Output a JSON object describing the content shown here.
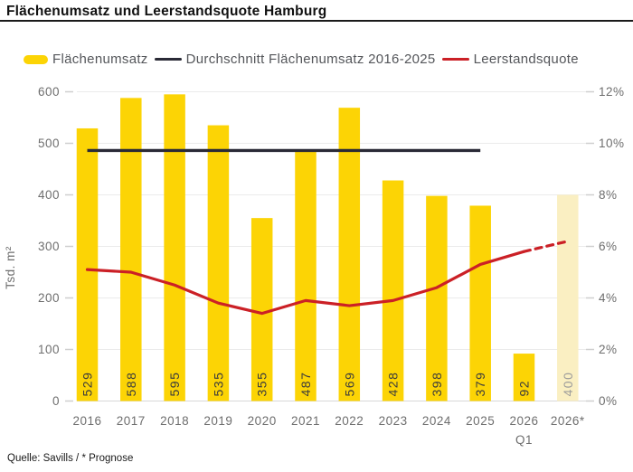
{
  "header": {
    "title": "Flächenumsatz und Leerstandsquote Hamburg"
  },
  "legend": {
    "items": [
      {
        "label": "Flächenumsatz",
        "swatch": "bar",
        "color": "#FCD405"
      },
      {
        "label": "Durchschnitt Flächenumsatz 2016-2025",
        "swatch": "line",
        "color": "#2A2A36"
      },
      {
        "label": "Leerstandsquote",
        "swatch": "line",
        "color": "#CB2026"
      }
    ]
  },
  "footer": {
    "source": "Quelle: Savills / * Prognose"
  },
  "chart_data": {
    "type": "bar",
    "title": "Flächenumsatz und Leerstandsquote Hamburg",
    "categories": [
      "2016",
      "2017",
      "2018",
      "2019",
      "2020",
      "2021",
      "2022",
      "2023",
      "2024",
      "2025",
      "2026",
      "2026*"
    ],
    "category_sublabels": [
      null,
      null,
      null,
      null,
      null,
      null,
      null,
      null,
      null,
      null,
      "Q1",
      null
    ],
    "series": [
      {
        "name": "Flächenumsatz",
        "type": "bar",
        "axis": "left",
        "unit": "Tsd. m²",
        "values": [
          529,
          588,
          595,
          535,
          355,
          487,
          569,
          428,
          398,
          379,
          92,
          400
        ],
        "forecast_indices": [
          11
        ],
        "color": "#FCD405",
        "forecast_color": "#FAEFC2",
        "label_color": "#3C3C3C",
        "forecast_label_color": "#9B9B9B"
      },
      {
        "name": "Durchschnitt Flächenumsatz 2016-2025",
        "type": "line",
        "axis": "left",
        "value": 486,
        "from_category": "2016",
        "to_category": "2025",
        "color": "#2A2A36"
      },
      {
        "name": "Leerstandsquote",
        "type": "line",
        "axis": "right",
        "unit": "%",
        "values": [
          5.1,
          5.0,
          4.5,
          3.8,
          3.4,
          3.9,
          3.7,
          3.9,
          4.4,
          5.3,
          5.8,
          6.2
        ],
        "dashed_from_index": 10,
        "color": "#CB2026"
      }
    ],
    "left_axis": {
      "label": "Tsd. m²",
      "ticks": [
        0,
        100,
        200,
        300,
        400,
        500,
        600
      ],
      "min": 0,
      "max": 600
    },
    "right_axis": {
      "ticks": [
        "0%",
        "2%",
        "4%",
        "6%",
        "8%",
        "10%",
        "12%"
      ],
      "min": 0,
      "max": 12
    },
    "grid": true,
    "legend_position": "top"
  }
}
